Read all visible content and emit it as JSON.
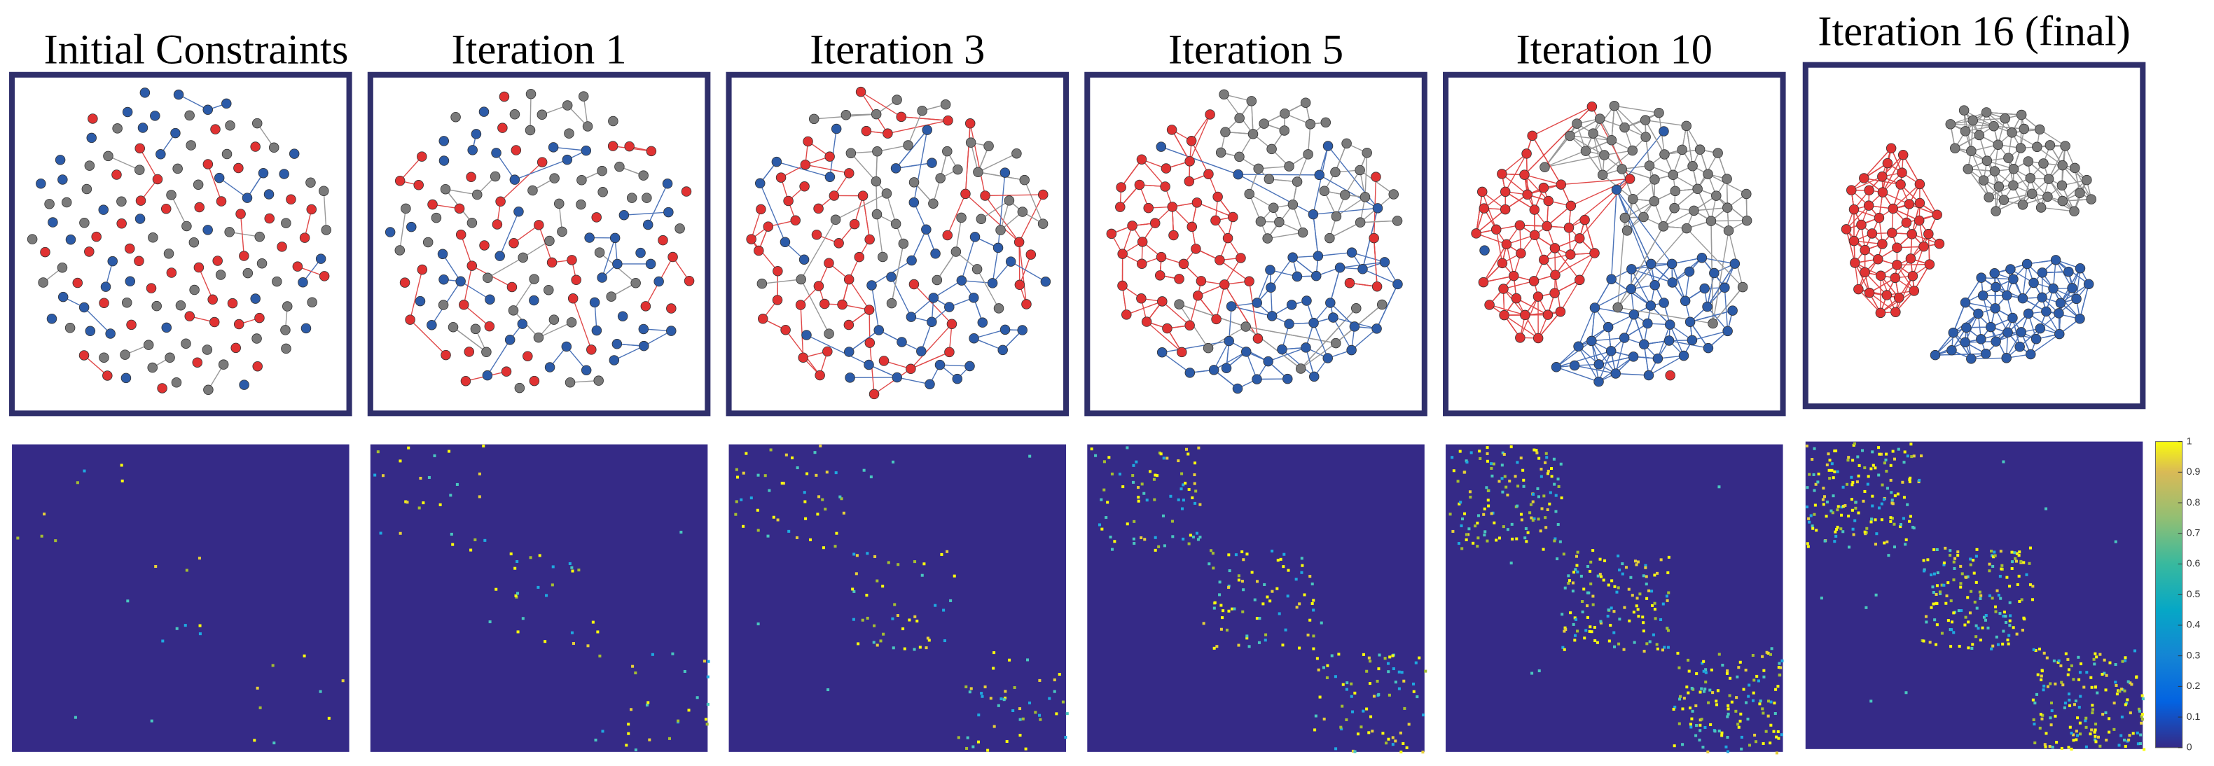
{
  "panels": [
    {
      "title": "Initial Constraints"
    },
    {
      "title": "Iteration 1"
    },
    {
      "title": "Iteration 3"
    },
    {
      "title": "Iteration 5"
    },
    {
      "title": "Iteration 10"
    },
    {
      "title": "Iteration 16 (final)"
    }
  ],
  "colorbar": {
    "ticks": [
      0,
      0.1,
      0.2,
      0.3,
      0.4,
      0.5,
      0.6,
      0.7,
      0.8,
      0.9,
      1
    ]
  }
}
